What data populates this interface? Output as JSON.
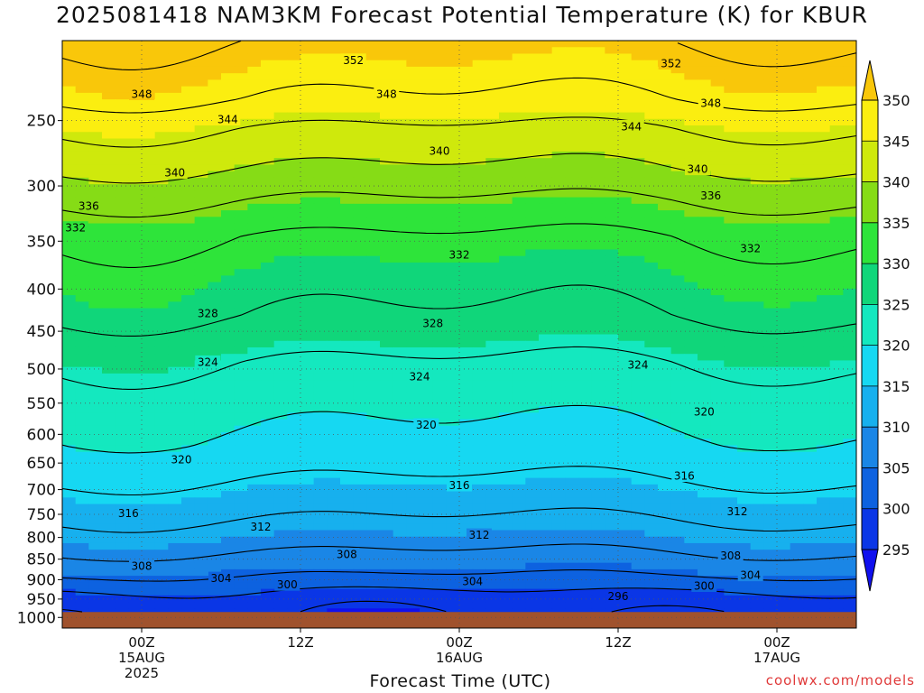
{
  "title": "2025081418 NAM3KM Forecast Potential Temperature (K) for KBUR",
  "credit": "coolwx.com/models",
  "chart_data": {
    "type": "heatmap",
    "title": "2025081418 NAM3KM Forecast Potential Temperature (K) for KBUR",
    "xlabel": "Forecast Time (UTC)",
    "ylabel": "",
    "x_ticks": [
      {
        "hour": 6,
        "lines": [
          "00Z",
          "15AUG",
          "2025"
        ]
      },
      {
        "hour": 18,
        "lines": [
          "12Z"
        ]
      },
      {
        "hour": 30,
        "lines": [
          "00Z",
          "16AUG"
        ]
      },
      {
        "hour": 42,
        "lines": [
          "12Z"
        ]
      },
      {
        "hour": 54,
        "lines": [
          "00Z",
          "17AUG"
        ]
      }
    ],
    "xlim_hours": [
      0,
      60
    ],
    "y_ticks": [
      250,
      300,
      350,
      400,
      450,
      500,
      550,
      600,
      650,
      700,
      750,
      800,
      850,
      900,
      950,
      1000
    ],
    "ylim": [
      1030,
      200
    ],
    "y_scale": "log-pressure",
    "colorbar": {
      "levels": [
        295,
        300,
        305,
        310,
        315,
        320,
        325,
        330,
        335,
        340,
        345,
        350
      ],
      "colors": [
        "#1010ee",
        "#0a36e6",
        "#0d62e0",
        "#1a86e6",
        "#17b0ee",
        "#16d8f2",
        "#14e8bf",
        "#10d67a",
        "#2ee43a",
        "#86dc16",
        "#cfe90c",
        "#fbee10",
        "#f9c70a"
      ],
      "extend": "both"
    },
    "contour_levels": [
      296,
      300,
      304,
      308,
      312,
      316,
      320,
      324,
      328,
      332,
      336,
      340,
      344,
      348,
      352
    ],
    "contour_labels": [
      {
        "value": "352",
        "hour": 22.0,
        "p": 211
      },
      {
        "value": "352",
        "hour": 46.0,
        "p": 213
      },
      {
        "value": "348",
        "hour": 6.0,
        "p": 232
      },
      {
        "value": "348",
        "hour": 24.5,
        "p": 232
      },
      {
        "value": "348",
        "hour": 49.0,
        "p": 238
      },
      {
        "value": "344",
        "hour": 12.5,
        "p": 249
      },
      {
        "value": "344",
        "hour": 43.0,
        "p": 254
      },
      {
        "value": "340",
        "hour": 28.5,
        "p": 272
      },
      {
        "value": "340",
        "hour": 8.5,
        "p": 289
      },
      {
        "value": "340",
        "hour": 48.0,
        "p": 286
      },
      {
        "value": "336",
        "hour": 2.0,
        "p": 317
      },
      {
        "value": "336",
        "hour": 49.0,
        "p": 308
      },
      {
        "value": "332",
        "hour": 1.0,
        "p": 337
      },
      {
        "value": "332",
        "hour": 30.0,
        "p": 363
      },
      {
        "value": "332",
        "hour": 52.0,
        "p": 357
      },
      {
        "value": "328",
        "hour": 11.0,
        "p": 428
      },
      {
        "value": "328",
        "hour": 28.0,
        "p": 440
      },
      {
        "value": "324",
        "hour": 11.0,
        "p": 490
      },
      {
        "value": "324",
        "hour": 27.0,
        "p": 510
      },
      {
        "value": "324",
        "hour": 43.5,
        "p": 494
      },
      {
        "value": "320",
        "hour": 27.5,
        "p": 584
      },
      {
        "value": "320",
        "hour": 48.5,
        "p": 563
      },
      {
        "value": "320",
        "hour": 9.0,
        "p": 643
      },
      {
        "value": "316",
        "hour": 30.0,
        "p": 691
      },
      {
        "value": "316",
        "hour": 47.0,
        "p": 673
      },
      {
        "value": "316",
        "hour": 5.0,
        "p": 747
      },
      {
        "value": "312",
        "hour": 51.0,
        "p": 743
      },
      {
        "value": "312",
        "hour": 15.0,
        "p": 776
      },
      {
        "value": "312",
        "hour": 31.5,
        "p": 794
      },
      {
        "value": "308",
        "hour": 21.5,
        "p": 838
      },
      {
        "value": "308",
        "hour": 50.5,
        "p": 841
      },
      {
        "value": "308",
        "hour": 6.0,
        "p": 866
      },
      {
        "value": "304",
        "hour": 12.0,
        "p": 896
      },
      {
        "value": "304",
        "hour": 31.0,
        "p": 904
      },
      {
        "value": "304",
        "hour": 52.0,
        "p": 888
      },
      {
        "value": "300",
        "hour": 17.0,
        "p": 912
      },
      {
        "value": "300",
        "hour": 48.5,
        "p": 915
      },
      {
        "value": "296",
        "hour": 42.0,
        "p": 942
      }
    ]
  }
}
